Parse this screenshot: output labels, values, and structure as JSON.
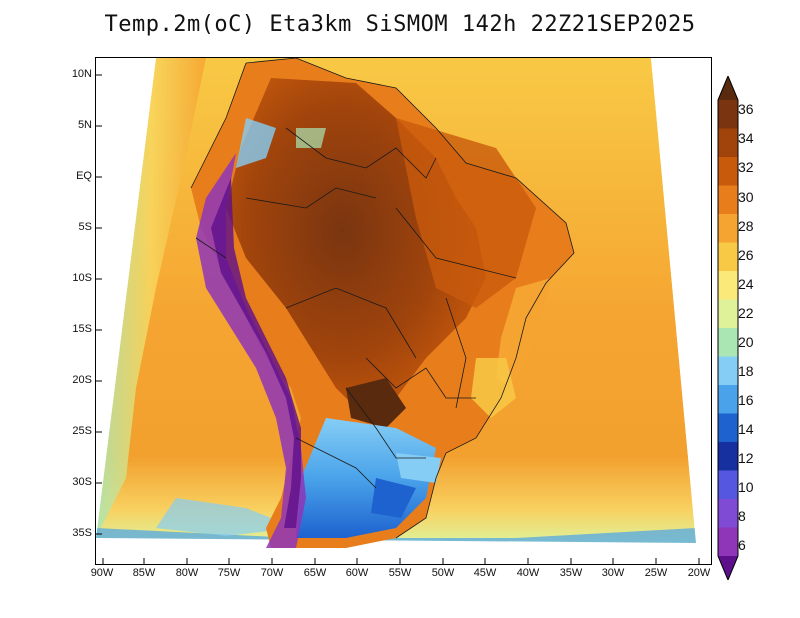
{
  "title": "Temp.2m(oC) Eta3km SiSMOM 142h 22Z21SEP2025",
  "map": {
    "variable": "2-m air temperature",
    "units": "oC",
    "region": "South America",
    "lat_labels": [
      "10N",
      "5N",
      "EQ",
      "5S",
      "10S",
      "15S",
      "20S",
      "25S",
      "30S",
      "35S"
    ],
    "lon_labels": [
      "90W",
      "85W",
      "80W",
      "75W",
      "70W",
      "65W",
      "60W",
      "55W",
      "50W",
      "45W",
      "40W",
      "35W",
      "30W",
      "25W",
      "20W"
    ]
  },
  "colorbar": {
    "labels": [
      "36",
      "34",
      "32",
      "30",
      "28",
      "26",
      "24",
      "22",
      "20",
      "18",
      "16",
      "14",
      "12",
      "10",
      "8",
      "6"
    ],
    "colors": [
      "#5a2a0e",
      "#7a3510",
      "#a0440c",
      "#c85a0c",
      "#e87d1c",
      "#f5a431",
      "#f8c945",
      "#fbe97a",
      "#dff29a",
      "#a9e6b4",
      "#86cdf5",
      "#4aa3ea",
      "#1d62cf",
      "#16309f",
      "#5657e0",
      "#7f4bd4",
      "#8e35b8",
      "#5e0f8c"
    ]
  }
}
